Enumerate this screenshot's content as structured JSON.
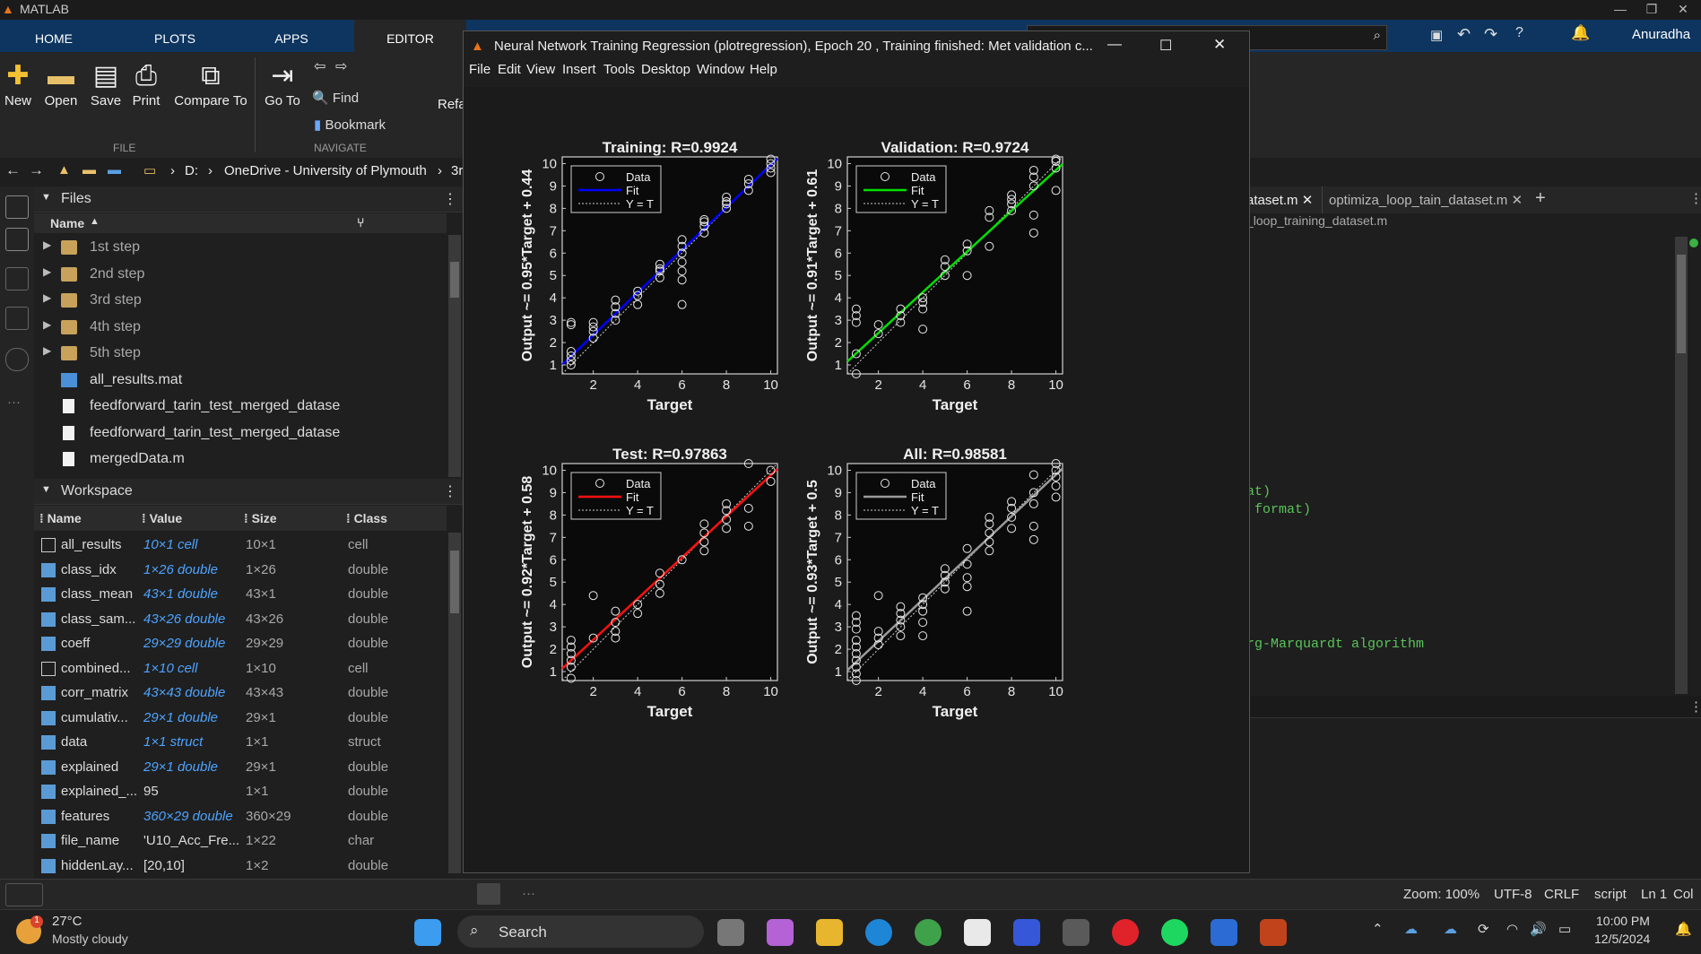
{
  "app": {
    "title": "MATLAB",
    "user": "Anuradha"
  },
  "tabs": [
    {
      "label": "HOME"
    },
    {
      "label": "PLOTS"
    },
    {
      "label": "APPS"
    },
    {
      "label": "EDITOR"
    }
  ],
  "ribbon": {
    "new": "New",
    "open": "Open",
    "save": "Save",
    "print": "Print",
    "compare": "Compare To",
    "goto": "Go To",
    "find": "Find",
    "bookmark": "Bookmark",
    "refactor": "Refa",
    "file_section": "FILE",
    "navigate_section": "NAVIGATE"
  },
  "address": {
    "drive": "D:",
    "folder1": "OneDrive - University of Plymouth",
    "folder2": "3r"
  },
  "files": {
    "title": "Files",
    "col_name": "Name",
    "items": [
      {
        "name": "1st step",
        "type": "folder"
      },
      {
        "name": "2nd step",
        "type": "folder"
      },
      {
        "name": "3rd step",
        "type": "folder"
      },
      {
        "name": "4th step",
        "type": "folder"
      },
      {
        "name": "5th step",
        "type": "folder"
      },
      {
        "name": "all_results.mat",
        "type": "mat"
      },
      {
        "name": "feedforward_tarin_test_merged_datase",
        "type": "file"
      },
      {
        "name": "feedforward_tarin_test_merged_datase",
        "type": "script"
      },
      {
        "name": "mergedData.m",
        "type": "script"
      }
    ]
  },
  "workspace": {
    "title": "Workspace",
    "headers": {
      "name": "Name",
      "value": "Value",
      "size": "Size",
      "class": "Class"
    },
    "rows": [
      {
        "name": "all_results",
        "value": "10×1 cell",
        "size": "10×1",
        "class": "cell"
      },
      {
        "name": "class_idx",
        "value": "1×26 double",
        "size": "1×26",
        "class": "double"
      },
      {
        "name": "class_mean",
        "value": "43×1 double",
        "size": "43×1",
        "class": "double"
      },
      {
        "name": "class_sam...",
        "value": "43×26 double",
        "size": "43×26",
        "class": "double"
      },
      {
        "name": "coeff",
        "value": "29×29 double",
        "size": "29×29",
        "class": "double"
      },
      {
        "name": "combined...",
        "value": "1×10 cell",
        "size": "1×10",
        "class": "cell"
      },
      {
        "name": "corr_matrix",
        "value": "43×43 double",
        "size": "43×43",
        "class": "double"
      },
      {
        "name": "cumulativ...",
        "value": "29×1 double",
        "size": "29×1",
        "class": "double"
      },
      {
        "name": "data",
        "value": "1×1 struct",
        "size": "1×1",
        "class": "struct"
      },
      {
        "name": "explained",
        "value": "29×1 double",
        "size": "29×1",
        "class": "double"
      },
      {
        "name": "explained_...",
        "value": "95",
        "size": "1×1",
        "class": "double"
      },
      {
        "name": "features",
        "value": "360×29 double",
        "size": "360×29",
        "class": "double"
      },
      {
        "name": "file_name",
        "value": "'U10_Acc_Fre...",
        "size": "1×22",
        "class": "char"
      },
      {
        "name": "hiddenLay...",
        "value": "[20,10]",
        "size": "1×2",
        "class": "double"
      }
    ]
  },
  "figure": {
    "title": "Neural Network Training Regression (plotregression), Epoch 20 , Training finished: Met validation c...",
    "menu": [
      "File",
      "Edit",
      "View",
      "Insert",
      "Tools",
      "Desktop",
      "Window",
      "Help"
    ]
  },
  "chart_data": [
    {
      "type": "scatter",
      "title": "Training: R=0.9924",
      "xlabel": "Target",
      "ylabel": "Output ~= 0.95*Target + 0.44",
      "xlim": [
        0.6,
        10.3
      ],
      "ylim": [
        0.6,
        10.3
      ],
      "fit": {
        "slope": 0.95,
        "intercept": 0.44,
        "color": "#0000ff"
      },
      "legend": [
        "Data",
        "Fit",
        "Y = T"
      ],
      "x": [
        1,
        1,
        1,
        1,
        1,
        2,
        2,
        2,
        2,
        3,
        3,
        3,
        3,
        4,
        4,
        4,
        5,
        5,
        5,
        5,
        6,
        6,
        6,
        6,
        6,
        6,
        7,
        7,
        7,
        7,
        8,
        8,
        8,
        8,
        9,
        9,
        9,
        10,
        10,
        10,
        10,
        1,
        6
      ],
      "y": [
        1.0,
        1.2,
        1.4,
        1.6,
        2.9,
        2.2,
        2.5,
        2.7,
        2.9,
        3.0,
        3.3,
        3.6,
        3.9,
        3.7,
        4.1,
        4.3,
        4.9,
        5.2,
        5.5,
        5.3,
        4.8,
        5.2,
        5.6,
        6.0,
        6.3,
        6.6,
        6.9,
        7.2,
        7.5,
        7.4,
        8.0,
        8.2,
        8.5,
        8.3,
        8.8,
        9.1,
        9.3,
        9.6,
        9.8,
        10.0,
        10.2,
        2.8,
        3.7
      ]
    },
    {
      "type": "scatter",
      "title": "Validation: R=0.9724",
      "xlabel": "Target",
      "ylabel": "Output ~= 0.91*Target + 0.61",
      "xlim": [
        0.6,
        10.3
      ],
      "ylim": [
        0.6,
        10.3
      ],
      "fit": {
        "slope": 0.91,
        "intercept": 0.61,
        "color": "#00e000"
      },
      "legend": [
        "Data",
        "Fit",
        "Y = T"
      ],
      "x": [
        1,
        1,
        1,
        1,
        1,
        2,
        2,
        3,
        3,
        3,
        4,
        4,
        4,
        4,
        5,
        5,
        5,
        6,
        6,
        6,
        7,
        7,
        7,
        8,
        8,
        8,
        8,
        9,
        9,
        9,
        9,
        9,
        10,
        10,
        10,
        10
      ],
      "y": [
        0.6,
        1.5,
        2.9,
        3.2,
        3.5,
        2.4,
        2.8,
        2.9,
        3.2,
        3.5,
        2.6,
        3.5,
        3.8,
        4.0,
        5.0,
        5.4,
        5.7,
        5.0,
        6.1,
        6.4,
        6.3,
        7.6,
        7.9,
        7.9,
        8.2,
        8.4,
        8.6,
        6.9,
        7.7,
        9.0,
        9.4,
        9.7,
        8.8,
        9.8,
        10.1,
        10.2
      ]
    },
    {
      "type": "scatter",
      "title": "Test: R=0.97863",
      "xlabel": "Target",
      "ylabel": "Output ~= 0.92*Target + 0.58",
      "xlim": [
        0.6,
        10.3
      ],
      "ylim": [
        0.6,
        10.3
      ],
      "fit": {
        "slope": 0.92,
        "intercept": 0.58,
        "color": "#ff1010"
      },
      "legend": [
        "Data",
        "Fit",
        "Y = T"
      ],
      "x": [
        1,
        1,
        1,
        1,
        1,
        1,
        2,
        2,
        3,
        3,
        3,
        3,
        4,
        4,
        5,
        5,
        5,
        6,
        7,
        7,
        7,
        7,
        8,
        8,
        8,
        8,
        9,
        9,
        9,
        10,
        10
      ],
      "y": [
        0.7,
        1.2,
        1.5,
        1.8,
        2.1,
        2.4,
        2.5,
        4.4,
        2.5,
        2.8,
        3.2,
        3.7,
        3.6,
        4.0,
        4.5,
        4.9,
        5.4,
        6.0,
        6.4,
        6.8,
        7.2,
        7.6,
        7.4,
        7.8,
        8.2,
        8.5,
        7.5,
        8.3,
        10.3,
        9.5,
        10.0
      ]
    },
    {
      "type": "scatter",
      "title": "All: R=0.98581",
      "xlabel": "Target",
      "ylabel": "Output ~= 0.93*Target + 0.5",
      "xlim": [
        0.6,
        10.3
      ],
      "ylim": [
        0.6,
        10.3
      ],
      "fit": {
        "slope": 0.93,
        "intercept": 0.5,
        "color": "#9a9a9a"
      },
      "legend": [
        "Data",
        "Fit",
        "Y = T"
      ],
      "x": [
        1,
        1,
        1,
        1,
        1,
        1,
        1,
        1,
        1,
        1,
        2,
        2,
        2,
        2,
        3,
        3,
        3,
        3,
        3,
        4,
        4,
        4,
        4,
        4,
        5,
        5,
        5,
        5,
        6,
        6,
        6,
        6,
        6,
        7,
        7,
        7,
        7,
        7,
        8,
        8,
        8,
        8,
        9,
        9,
        9,
        9,
        9,
        10,
        10,
        10,
        10,
        10
      ],
      "y": [
        0.6,
        0.9,
        1.2,
        1.5,
        1.8,
        2.1,
        2.4,
        2.9,
        3.2,
        3.5,
        2.2,
        2.5,
        2.8,
        4.4,
        2.6,
        3.0,
        3.3,
        3.6,
        3.9,
        2.6,
        3.2,
        3.7,
        4.0,
        4.3,
        4.7,
        5.0,
        5.3,
        5.6,
        3.7,
        4.8,
        5.2,
        5.8,
        6.5,
        6.4,
        6.8,
        7.2,
        7.6,
        7.9,
        7.4,
        7.9,
        8.3,
        8.6,
        6.9,
        7.5,
        8.5,
        9.0,
        9.8,
        8.8,
        9.3,
        9.7,
        10.0,
        10.3
      ]
    }
  ],
  "editor": {
    "tab1": "ataset.m",
    "tab2": "optimiza_loop_tain_dataset.m",
    "crumb": "_loop_training_dataset.m",
    "lines": [
      "at)",
      " format)",
      "rg-Marquardt algorithm"
    ]
  },
  "status": {
    "zoom": "Zoom: 100%",
    "encoding": "UTF-8",
    "eol": "CRLF",
    "type": "script",
    "ln": "Ln 1",
    "col": "Col"
  },
  "taskbar": {
    "temp": "27°C",
    "weather": "Mostly cloudy",
    "search": "Search",
    "time": "10:00 PM",
    "date": "12/5/2024",
    "badge": "1"
  },
  "colors": {
    "accent": "#0d3560",
    "fig_bg": "#1b1b1b"
  }
}
